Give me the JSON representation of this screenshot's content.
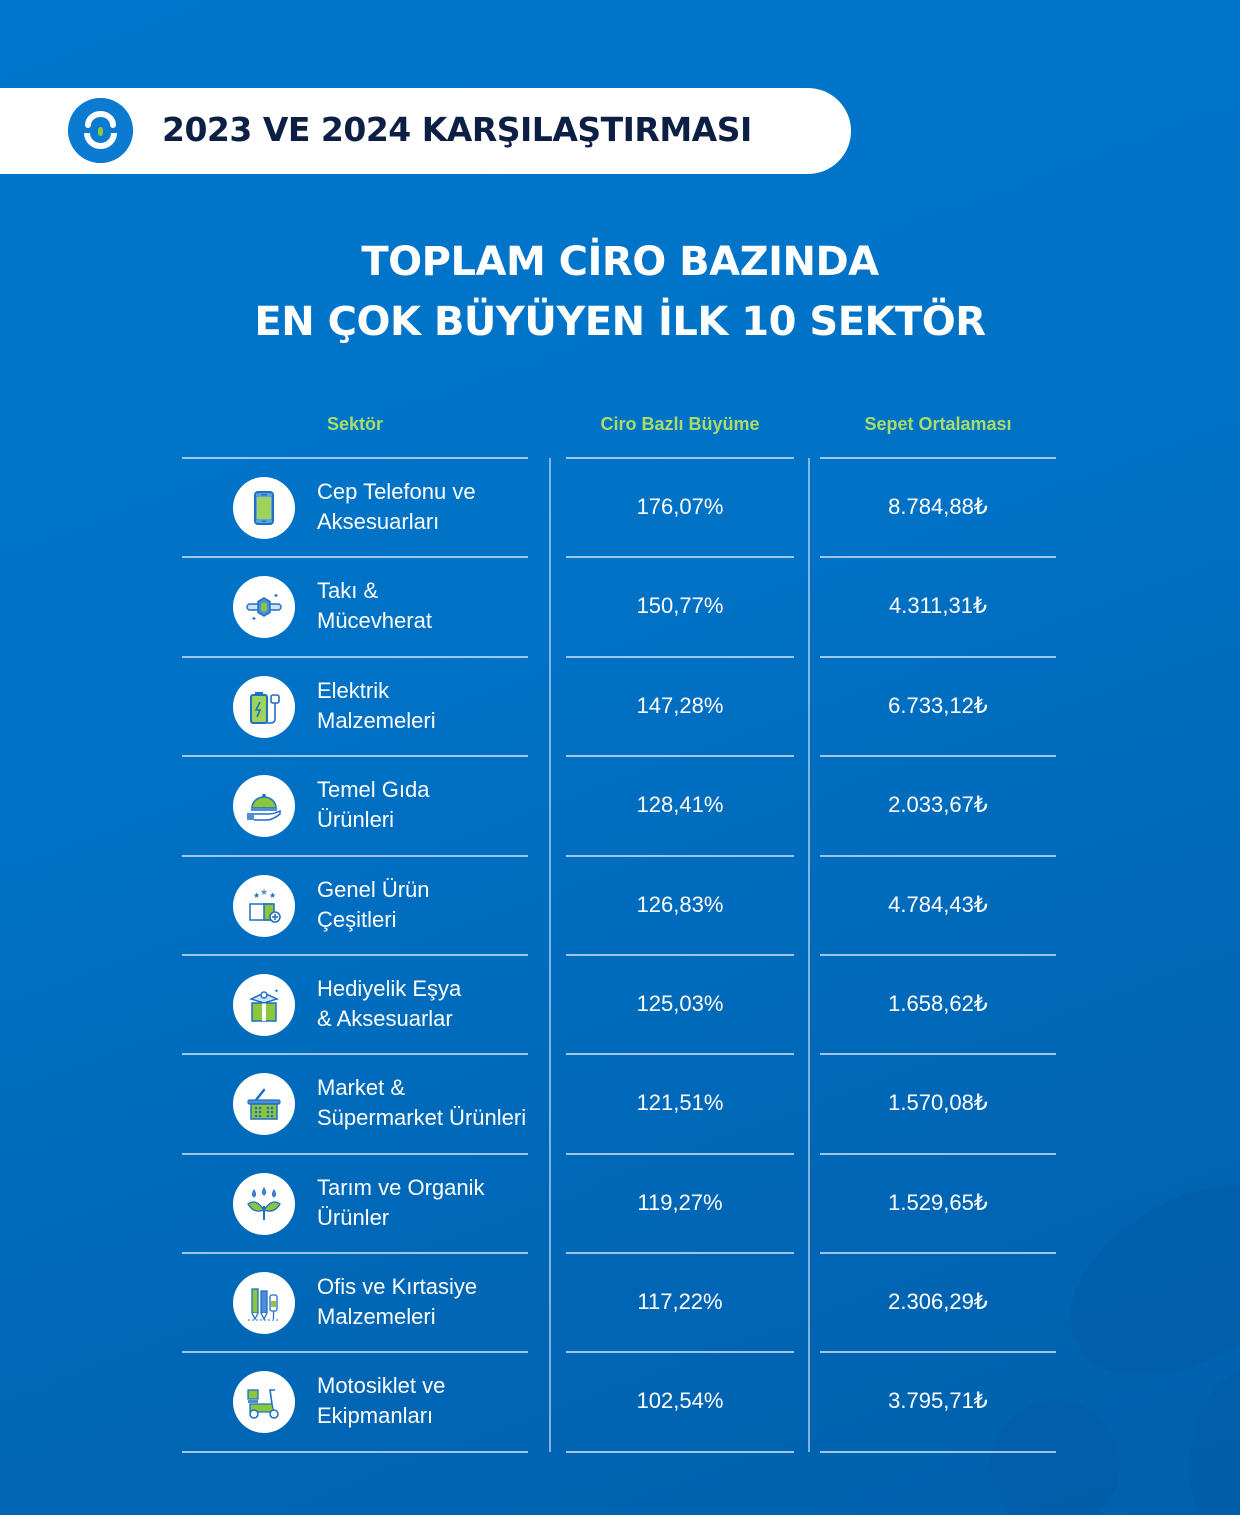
{
  "header": {
    "title": "2023 VE 2024 KARŞILAŞTIRMASI",
    "logo_icon": "brand-logo-icon"
  },
  "main_title": {
    "line1": "TOPLAM CİRO BAZINDA",
    "line2": "EN ÇOK BÜYÜYEN İLK 10 SEKTÖR"
  },
  "table": {
    "columns": [
      "Sektör",
      "Ciro Bazlı Büyüme",
      "Sepet Ortalaması"
    ],
    "rows": [
      {
        "line1": "Cep Telefonu ve",
        "line2": "Aksesuarları",
        "growth": "176,07%",
        "basket": "8.784,88₺",
        "icon": "mobile-phone-icon"
      },
      {
        "line1": "Takı &",
        "line2": "Mücevherat",
        "growth": "150,77%",
        "basket": "4.311,31₺",
        "icon": "jewelry-icon"
      },
      {
        "line1": "Elektrik",
        "line2": "Malzemeleri",
        "growth": "147,28%",
        "basket": "6.733,12₺",
        "icon": "battery-plug-icon"
      },
      {
        "line1": "Temel Gıda",
        "line2": "Ürünleri",
        "growth": "128,41%",
        "basket": "2.033,67₺",
        "icon": "food-cloche-icon"
      },
      {
        "line1": "Genel Ürün",
        "line2": "Çeşitleri",
        "growth": "126,83%",
        "basket": "4.784,43₺",
        "icon": "open-box-icon"
      },
      {
        "line1": "Hediyelik Eşya",
        "line2": "& Aksesuarlar",
        "growth": "125,03%",
        "basket": "1.658,62₺",
        "icon": "gift-box-icon"
      },
      {
        "line1": "Market &",
        "line2": "Süpermarket Ürünleri",
        "growth": "121,51%",
        "basket": "1.570,08₺",
        "icon": "shopping-basket-icon"
      },
      {
        "line1": "Tarım ve Organik",
        "line2": "Ürünler",
        "growth": "119,27%",
        "basket": "1.529,65₺",
        "icon": "plant-water-icon"
      },
      {
        "line1": "Ofis ve Kırtasiye",
        "line2": "Malzemeleri",
        "growth": "117,22%",
        "basket": "2.306,29₺",
        "icon": "pens-icon"
      },
      {
        "line1": "Motosiklet ve",
        "line2": "Ekipmanları",
        "growth": "102,54%",
        "basket": "3.795,71₺",
        "icon": "scooter-icon"
      }
    ]
  },
  "colors": {
    "background": "#0072c6",
    "header_text": "#0e1f45",
    "column_header": "#a9dc6a",
    "icon_green": "#8cc63f",
    "icon_blue": "#1f6fc2"
  }
}
